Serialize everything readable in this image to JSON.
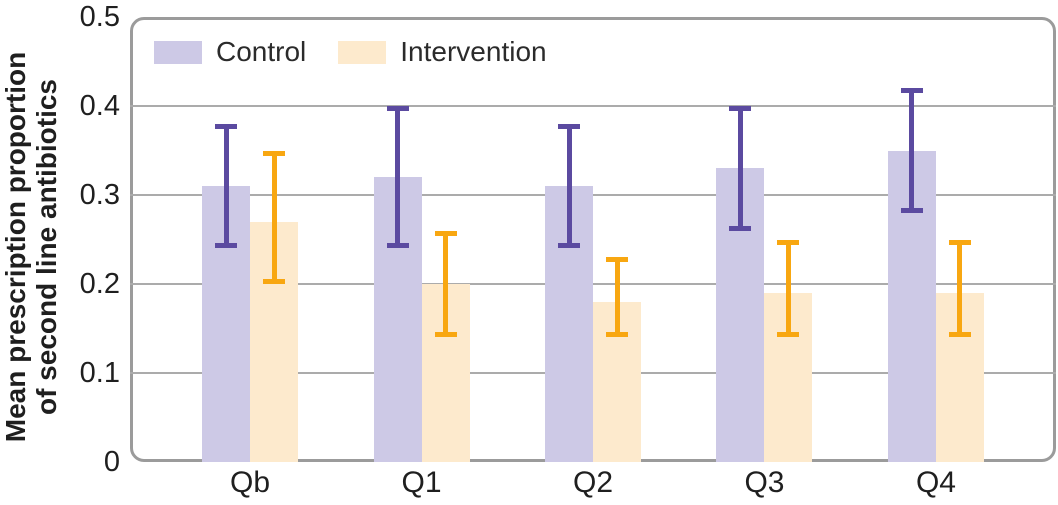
{
  "chart_data": {
    "type": "bar",
    "title": "",
    "ylabel": "Mean prescription proportion\nof second line antibiotics",
    "xlabel": "",
    "categories": [
      "Qb",
      "Q1",
      "Q2",
      "Q3",
      "Q4"
    ],
    "series": [
      {
        "name": "Control",
        "values": [
          0.31,
          0.32,
          0.31,
          0.33,
          0.35
        ],
        "ci_low": [
          0.24,
          0.24,
          0.24,
          0.26,
          0.28
        ],
        "ci_high": [
          0.38,
          0.4,
          0.38,
          0.4,
          0.42
        ],
        "bar_color": "#cdc9e6",
        "error_color": "#5b4aa0"
      },
      {
        "name": "Intervention",
        "values": [
          0.27,
          0.2,
          0.18,
          0.19,
          0.19
        ],
        "ci_low": [
          0.2,
          0.14,
          0.14,
          0.14,
          0.14
        ],
        "ci_high": [
          0.35,
          0.26,
          0.23,
          0.25,
          0.25
        ],
        "bar_color": "#fdeacd",
        "error_color": "#f8a711"
      }
    ],
    "ylim": [
      0,
      0.5
    ],
    "yticks": [
      0.5,
      0.4,
      0.3,
      0.2,
      0.1,
      0
    ],
    "ytick_labels": [
      "0.5",
      "0.4",
      "0.3",
      "0.2",
      "0.1",
      "0"
    ],
    "grid": true,
    "gridline_values": [
      0.4,
      0.3,
      0.2,
      0.1
    ],
    "legend_position": "top-left-inside",
    "grid_color": "#ababab",
    "frame_color": "#9b9b9b",
    "text_color": "#1f1f1f"
  }
}
